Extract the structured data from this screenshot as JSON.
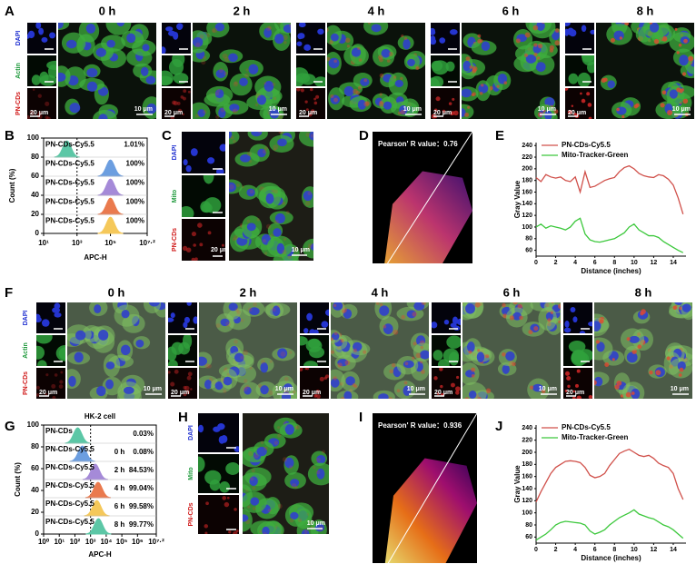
{
  "panels": {
    "A": {
      "label": "A",
      "times": [
        "0 h",
        "2 h",
        "4 h",
        "6 h",
        "8 h"
      ],
      "channels": [
        "DAPI",
        "Actin",
        "PN-CDs"
      ],
      "scale_small": [
        "20 μm",
        "20 μm",
        "20 μm",
        "20 μm",
        "20 μm"
      ],
      "scale_large": [
        "10 μm",
        "10 μm",
        "10 μm",
        "10 μm",
        "10 μm"
      ]
    },
    "C": {
      "label": "C",
      "channels": [
        "DAPI",
        "Mito",
        "PN-CDs"
      ],
      "scale_small": "20 μm",
      "scale_large": "10 μm"
    },
    "D": {
      "label": "D",
      "annotation": "Pearson' R value：0.76"
    },
    "F": {
      "label": "F",
      "times": [
        "0 h",
        "2 h",
        "4 h",
        "6 h",
        "8 h"
      ],
      "channels": [
        "DAPI",
        "Actin",
        "PN-CDs"
      ],
      "scale_small": [
        "20 μm",
        "20 μm",
        "20 μm",
        "20 μm",
        "20 μm"
      ],
      "scale_large": [
        "10 μm",
        "10 μm",
        "10 μm",
        "10 μm",
        "10 μm"
      ]
    },
    "H": {
      "label": "H",
      "channels": [
        "DAPI",
        "Mito",
        "PN-CDs"
      ],
      "scale_large": "10 μm"
    },
    "I": {
      "label": "I",
      "annotation": "Pearson' R value：0.936"
    }
  },
  "chart_data": [
    {
      "type": "density",
      "panel": "B",
      "ylabel": "Count (%)",
      "xlabel": "APC-H",
      "xscale": "log",
      "xlim": [
        10,
        15848932
      ],
      "xticks": [
        {
          "value": 10,
          "label": "10¹"
        },
        {
          "value": 1000,
          "label": "10³"
        },
        {
          "value": 100000,
          "label": "10⁵"
        },
        {
          "value": 15848932,
          "label": "10⁷·²"
        }
      ],
      "ylim": [
        0,
        100
      ],
      "yticks": [
        0,
        20,
        40,
        60,
        80,
        100
      ],
      "gate": 1000,
      "series": [
        {
          "name": "PN-CDs-Cy5.5",
          "color": "#5cc7a6",
          "peak": 250,
          "label": "1.01%"
        },
        {
          "name": "PN-CDs-Cy5.5",
          "color": "#6c9ee0",
          "peak": 100000,
          "label": "100%"
        },
        {
          "name": "PN-CDs-Cy5.5",
          "color": "#a58ad8",
          "peak": 100000,
          "label": "100%"
        },
        {
          "name": "PN-CDs-Cy5.5",
          "color": "#ea7a4e",
          "peak": 100000,
          "label": "100%"
        },
        {
          "name": "PN-CDs-Cy5.5",
          "color": "#f5c85a",
          "peak": 100000,
          "label": "100%"
        }
      ]
    },
    {
      "type": "line",
      "panel": "E",
      "xlabel": "Distance (inches)",
      "ylabel": "Gray Value",
      "legend": "upper left",
      "x": [
        0,
        0.5,
        1,
        1.5,
        2,
        2.5,
        3,
        3.5,
        4,
        4.5,
        5,
        5.5,
        6,
        6.5,
        7,
        7.5,
        8,
        8.5,
        9,
        9.5,
        10,
        10.5,
        11,
        11.5,
        12,
        12.5,
        13,
        13.5,
        14,
        14.5,
        15
      ],
      "xlim": [
        0,
        15.3
      ],
      "xticks": [
        0,
        2,
        4,
        6,
        8,
        10,
        12,
        14
      ],
      "ylim": [
        50,
        245
      ],
      "yticks": [
        60,
        80,
        100,
        120,
        140,
        160,
        180,
        200,
        220,
        240
      ],
      "series": [
        {
          "name": "PN-CDs-Cy5.5",
          "color": "#d0504a",
          "values": [
            185,
            178,
            190,
            186,
            184,
            186,
            180,
            178,
            186,
            160,
            195,
            168,
            170,
            175,
            180,
            183,
            185,
            195,
            202,
            205,
            200,
            192,
            188,
            186,
            185,
            190,
            188,
            182,
            172,
            150,
            122
          ]
        },
        {
          "name": "Mito-Tracker-Green",
          "color": "#3cc83c",
          "values": [
            100,
            105,
            98,
            102,
            100,
            98,
            95,
            100,
            110,
            115,
            88,
            78,
            75,
            74,
            76,
            78,
            80,
            85,
            90,
            100,
            105,
            95,
            90,
            85,
            85,
            82,
            75,
            70,
            65,
            60,
            56
          ]
        }
      ]
    },
    {
      "type": "density",
      "panel": "G",
      "title": "HK-2 cell",
      "ylabel": "Count (%)",
      "xlabel": "APC-H",
      "xscale": "log",
      "xlim": [
        1,
        15848932
      ],
      "xticks": [
        {
          "value": 1,
          "label": "10⁰"
        },
        {
          "value": 10,
          "label": "10¹"
        },
        {
          "value": 100,
          "label": "10²"
        },
        {
          "value": 1000,
          "label": "10³"
        },
        {
          "value": 10000,
          "label": "10⁴"
        },
        {
          "value": 100000,
          "label": "10⁵"
        },
        {
          "value": 1000000,
          "label": "10⁶"
        },
        {
          "value": 15848932,
          "label": "10⁷·²"
        }
      ],
      "ylim": [
        0,
        100
      ],
      "yticks": [
        0,
        20,
        40,
        60,
        80,
        100
      ],
      "gate": 1000,
      "series": [
        {
          "name": "PN-CDs",
          "color": "#5cc7a6",
          "peak": 150,
          "label": "0.03%"
        },
        {
          "name": "PN-CDs-Cy5.5",
          "time": "0 h",
          "color": "#6c9ee0",
          "peak": 300,
          "label": "0.08%"
        },
        {
          "name": "PN-CDs-Cy5.5",
          "time": "2 h",
          "color": "#a58ad8",
          "peak": 2000,
          "label": "84.53%"
        },
        {
          "name": "PN-CDs-Cy5.5",
          "time": "4 h",
          "color": "#ea7a4e",
          "peak": 3000,
          "label": "99.04%"
        },
        {
          "name": "PN-CDs-Cy5.5",
          "time": "6 h",
          "color": "#f5c85a",
          "peak": 2500,
          "label": "99.58%"
        },
        {
          "name": "PN-CDs-Cy5.5",
          "time": "8 h",
          "color": "#5cc7a6",
          "peak": 3200,
          "label": "99.77%"
        }
      ]
    },
    {
      "type": "line",
      "panel": "J",
      "xlabel": "Distance (inches)",
      "ylabel": "Gray Value",
      "legend": "upper left",
      "x": [
        0,
        0.5,
        1,
        1.5,
        2,
        2.5,
        3,
        3.5,
        4,
        4.5,
        5,
        5.5,
        6,
        6.5,
        7,
        7.5,
        8,
        8.5,
        9,
        9.5,
        10,
        10.5,
        11,
        11.5,
        12,
        12.5,
        13,
        13.5,
        14,
        14.5,
        15
      ],
      "xlim": [
        0,
        15.3
      ],
      "xticks": [
        0,
        2,
        4,
        6,
        8,
        10,
        12,
        14
      ],
      "ylim": [
        50,
        245
      ],
      "yticks": [
        60,
        80,
        100,
        120,
        140,
        160,
        180,
        200,
        220,
        240
      ],
      "series": [
        {
          "name": "PN-CDs-Cy5.5",
          "color": "#d0504a",
          "values": [
            118,
            135,
            150,
            165,
            175,
            180,
            185,
            186,
            185,
            183,
            175,
            162,
            158,
            160,
            165,
            178,
            188,
            198,
            202,
            205,
            200,
            195,
            193,
            195,
            190,
            182,
            178,
            175,
            165,
            140,
            122
          ]
        },
        {
          "name": "Mito-Tracker-Green",
          "color": "#3cc83c",
          "values": [
            55,
            60,
            65,
            72,
            80,
            84,
            86,
            85,
            84,
            83,
            80,
            70,
            65,
            68,
            72,
            80,
            86,
            92,
            96,
            100,
            105,
            98,
            95,
            92,
            90,
            85,
            80,
            77,
            72,
            65,
            58
          ]
        }
      ]
    }
  ]
}
